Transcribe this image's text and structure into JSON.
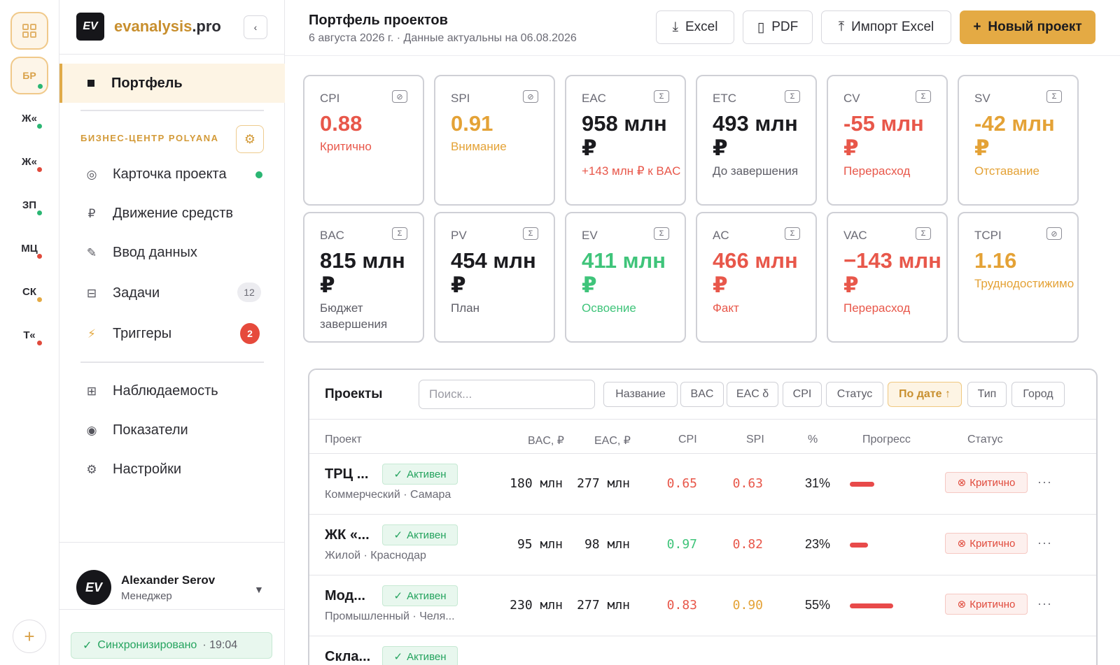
{
  "rail": {
    "grid_icon": "grid-icon",
    "items": [
      {
        "label": "БР",
        "dot": "#2bb673"
      },
      {
        "label": "Ж«",
        "dot": "#2bb673"
      },
      {
        "label": "Ж«",
        "dot": "#e04a3c"
      },
      {
        "label": "ЗП",
        "dot": "#2bb673"
      },
      {
        "label": "МЦ",
        "dot": "#e04a3c"
      },
      {
        "label": "СК",
        "dot": "#e4aa44"
      },
      {
        "label": "Т«",
        "dot": "#e04a3c"
      }
    ],
    "add": "+"
  },
  "sidebar": {
    "brand_logo": "EV",
    "brand_name": "evanalysis",
    "brand_tld": ".pro",
    "collapse": "‹",
    "active_item": "Портфель",
    "section_title": "БИЗНЕС-ЦЕНТР POLYANA",
    "items": [
      {
        "icon": "◎",
        "label": "Карточка проекта"
      },
      {
        "icon": "₽",
        "label": "Движение средств"
      },
      {
        "icon": "✎",
        "label": "Ввод данных"
      },
      {
        "icon": "⊟",
        "label": "Задачи",
        "badge": "12"
      },
      {
        "icon": "⚡",
        "label": "Триггеры",
        "badge": "2"
      }
    ],
    "items2": [
      {
        "icon": "⊞",
        "label": "Наблюдаемость"
      },
      {
        "icon": "◉",
        "label": "Показатели"
      },
      {
        "icon": "⚙",
        "label": "Настройки"
      }
    ],
    "user": {
      "avatar": "EV",
      "name": "Alexander Serov",
      "role": "Менеджер"
    },
    "sync": {
      "label": "Синхронизировано",
      "time": "· 19:04"
    }
  },
  "header": {
    "title": "Портфель проектов",
    "subtitle": "6 августа 2026 г. · Данные актуальны на 06.08.2026",
    "buttons": {
      "excel": "Excel",
      "pdf": "PDF",
      "import": "Импорт Excel",
      "new": "Новый проект"
    }
  },
  "cards": [
    {
      "label": "CPI",
      "icon": "⊘",
      "value": "0.88",
      "note": "Критично",
      "color": "#e8574a",
      "note_color": "#e8574a"
    },
    {
      "label": "SPI",
      "icon": "⊘",
      "value": "0.91",
      "note": "Внимание",
      "color": "#e4a236",
      "note_color": "#e4a236"
    },
    {
      "label": "EAC",
      "icon": "Σ",
      "value": "958 млн ₽",
      "note": "+143 млн ₽ к BAC",
      "color": "#1b1b1f",
      "note_color": "#e8574a"
    },
    {
      "label": "ETC",
      "icon": "Σ",
      "value": "493 млн ₽",
      "note": "До завершения",
      "color": "#1b1b1f",
      "note_color": "#5d5d66"
    },
    {
      "label": "CV",
      "icon": "Σ",
      "value": "-55 млн ₽",
      "note": "Перерасход",
      "color": "#e8574a",
      "note_color": "#e8574a"
    },
    {
      "label": "SV",
      "icon": "Σ",
      "value": "-42 млн ₽",
      "note": "Отставание",
      "color": "#e4a236",
      "note_color": "#e4a236"
    },
    {
      "label": "BAC",
      "icon": "Σ",
      "value": "815 млн ₽",
      "note": "Бюджет завершения",
      "color": "#1b1b1f",
      "note_color": "#5d5d66"
    },
    {
      "label": "PV",
      "icon": "Σ",
      "value": "454 млн ₽",
      "note": "План",
      "color": "#1b1b1f",
      "note_color": "#5d5d66"
    },
    {
      "label": "EV",
      "icon": "Σ",
      "value": "411 млн ₽",
      "note": "Освоение",
      "color": "#3fc47a",
      "note_color": "#3fc47a"
    },
    {
      "label": "AC",
      "icon": "Σ",
      "value": "466 млн ₽",
      "note": "Факт",
      "color": "#e8574a",
      "note_color": "#e8574a"
    },
    {
      "label": "VAC",
      "icon": "Σ",
      "value": "−143 млн ₽",
      "note": "Перерасход",
      "color": "#e8574a",
      "note_color": "#e8574a"
    },
    {
      "label": "TCPI",
      "icon": "⊘",
      "value": "1.16",
      "note": "Труднодостижимо",
      "color": "#e4a236",
      "note_color": "#e4a236"
    }
  ],
  "projects": {
    "title": "Проекты",
    "search_placeholder": "Поиск...",
    "chips": [
      "Название",
      "BAC",
      "EAC δ",
      "CPI",
      "Статус",
      "По дате ↑",
      "Тип",
      "Город"
    ],
    "columns": [
      "Проект",
      "BAC, ₽",
      "EAC, ₽",
      "CPI",
      "SPI",
      "%",
      "Прогресс",
      "Статус"
    ],
    "rows": [
      {
        "name": "ТРЦ ...",
        "tag": "Активен",
        "sub": "Коммерческий · Самара",
        "bac": "180 млн",
        "eac": "277 млн",
        "cpi": "0.65",
        "cpi_color": "#e8574a",
        "spi": "0.63",
        "spi_color": "#e8574a",
        "pct": "31%",
        "progress": 0.31,
        "status": "Критично"
      },
      {
        "name": "ЖК «...",
        "tag": "Активен",
        "sub": "Жилой · Краснодар",
        "bac": "95 млн",
        "eac": "98 млн",
        "cpi": "0.97",
        "cpi_color": "#3fc47a",
        "spi": "0.82",
        "spi_color": "#e8574a",
        "pct": "23%",
        "progress": 0.23,
        "status": "Критично"
      },
      {
        "name": "Мод...",
        "tag": "Активен",
        "sub": "Промышленный · Челя...",
        "bac": "230 млн",
        "eac": "277 млн",
        "cpi": "0.83",
        "cpi_color": "#e8574a",
        "spi": "0.90",
        "spi_color": "#e4a236",
        "pct": "55%",
        "progress": 0.55,
        "status": "Критично"
      },
      {
        "name": "Скла...",
        "tag": "Активен"
      }
    ]
  }
}
